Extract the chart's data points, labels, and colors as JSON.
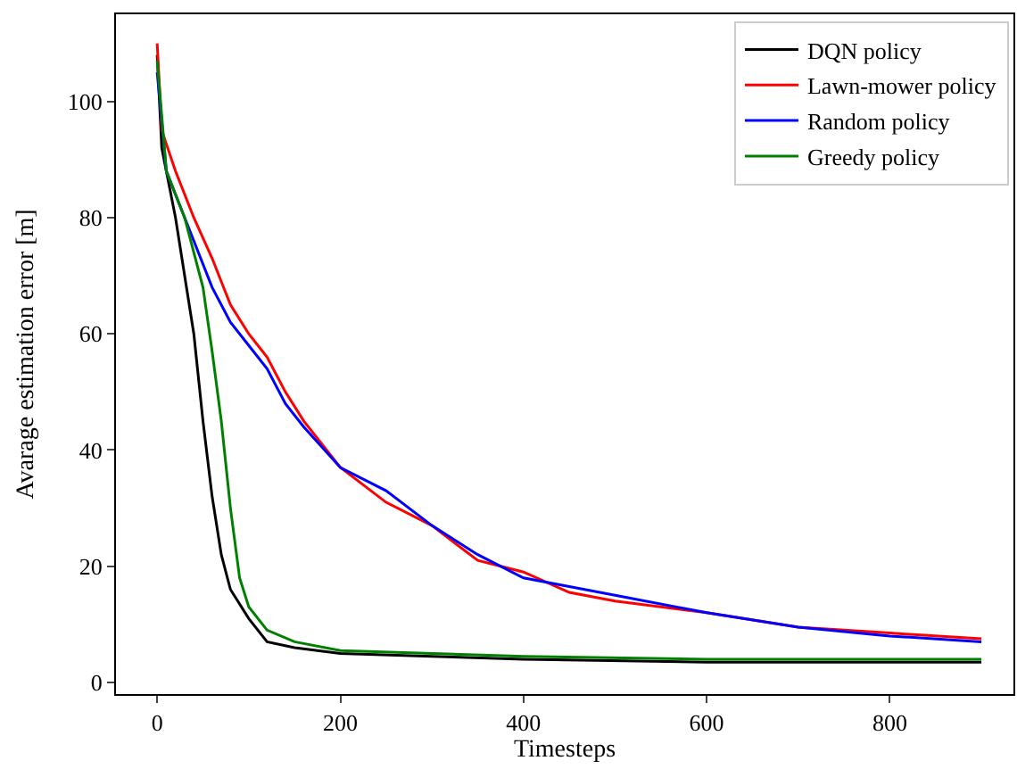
{
  "chart_data": {
    "type": "line",
    "xlabel": "Timesteps",
    "ylabel": "Avarage estimation error [m]",
    "xlim": [
      -45,
      935
    ],
    "ylim": [
      -2,
      115
    ],
    "xticks": [
      0,
      200,
      400,
      600,
      800
    ],
    "yticks": [
      0,
      20,
      40,
      60,
      80,
      100
    ],
    "legend": "top right",
    "marker": "none",
    "line_style": "solid",
    "series": [
      {
        "name": "DQN policy",
        "color": "#000000",
        "x": [
          0,
          5,
          20,
          40,
          50,
          60,
          70,
          80,
          100,
          120,
          150,
          200,
          300,
          400,
          600,
          900
        ],
        "values": [
          108,
          92,
          80,
          60,
          45,
          32,
          22,
          16,
          11,
          7,
          6,
          5,
          4.5,
          4,
          3.5,
          3.5
        ]
      },
      {
        "name": "Lawn-mower policy",
        "color": "#ff0000",
        "x": [
          0,
          5,
          20,
          40,
          60,
          80,
          100,
          120,
          140,
          160,
          200,
          250,
          300,
          350,
          400,
          450,
          500,
          600,
          700,
          800,
          900
        ],
        "values": [
          110,
          95,
          88,
          80,
          73,
          65,
          60,
          56,
          50,
          45,
          37,
          31,
          27,
          21,
          19,
          15.5,
          14,
          12,
          9.5,
          8.5,
          7.5
        ]
      },
      {
        "name": "Random policy",
        "color": "#0000ff",
        "x": [
          0,
          10,
          30,
          60,
          80,
          100,
          120,
          140,
          160,
          200,
          250,
          300,
          350,
          400,
          450,
          500,
          600,
          700,
          800,
          900
        ],
        "values": [
          105,
          88,
          80,
          68,
          62,
          58,
          54,
          48,
          44,
          37,
          33,
          27,
          22,
          18,
          16.5,
          15,
          12,
          9.5,
          8,
          7
        ]
      },
      {
        "name": "Greedy policy",
        "color": "#008000",
        "x": [
          0,
          10,
          30,
          50,
          60,
          70,
          80,
          90,
          100,
          120,
          150,
          200,
          300,
          400,
          600,
          900
        ],
        "values": [
          107,
          88,
          80,
          68,
          57,
          45,
          30,
          18,
          13,
          9,
          7,
          5.5,
          5,
          4.5,
          4,
          4
        ]
      }
    ]
  }
}
